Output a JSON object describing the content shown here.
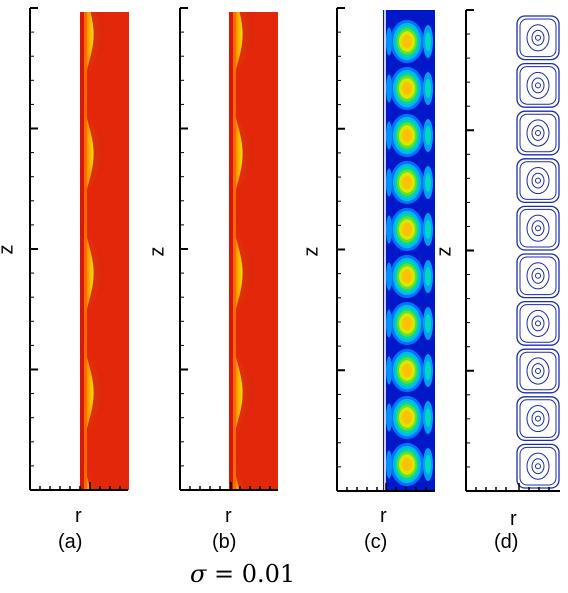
{
  "panels": [
    {
      "id": "a",
      "caption": "(a)",
      "z_label": "z",
      "r_label": "r",
      "plot": "contour",
      "border": "wall"
    },
    {
      "id": "b",
      "caption": "(b)",
      "z_label": "z",
      "r_label": "r",
      "plot": "contour",
      "border": "fill"
    },
    {
      "id": "c",
      "caption": "(c)",
      "z_label": "z",
      "r_label": "r",
      "plot": "cells"
    },
    {
      "id": "d",
      "caption": "(d)",
      "z_label": "z",
      "r_label": "r",
      "plot": "streamlines"
    }
  ],
  "parameter": {
    "symbol": "σ",
    "text": " = 0.01"
  },
  "colors": {
    "contour_scale": [
      "#0018c8",
      "#0050ff",
      "#0090ff",
      "#00c8e6",
      "#00d890",
      "#44dc2c",
      "#b8e600",
      "#ffd000",
      "#ff7a00",
      "#e0200c"
    ],
    "streamline": "#1c2bb0",
    "axis": "#000000"
  },
  "contour_params": {
    "waves": 4,
    "cells": 10,
    "streamline_cells": 10
  }
}
